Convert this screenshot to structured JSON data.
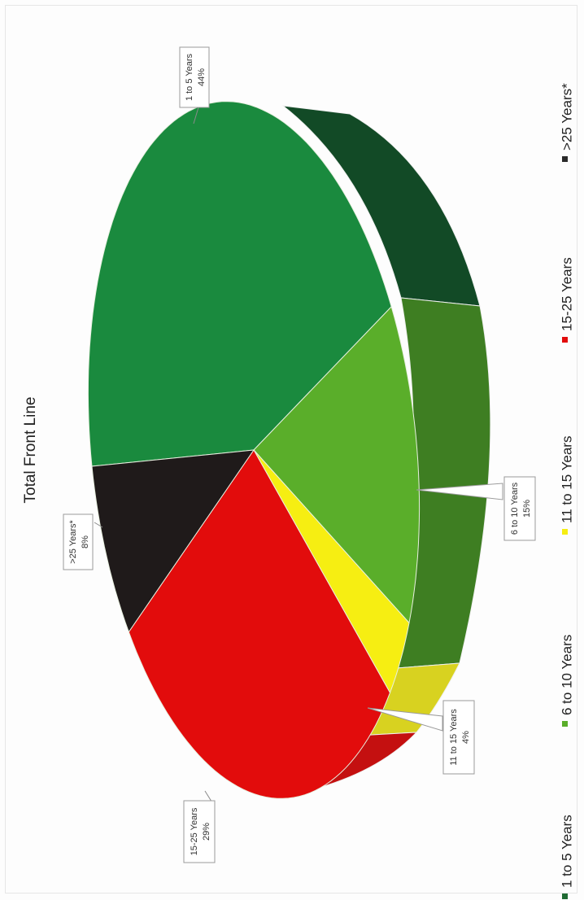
{
  "chart_data": {
    "type": "pie",
    "title": "Total Front Line",
    "slices": [
      {
        "name": "1 to 5 Years",
        "label": "1 to 5 Years",
        "value": 44,
        "value_label": "44%",
        "color": "#1a8a3e",
        "side_color": "#124a26"
      },
      {
        "name": "6 to 10 Years",
        "label": "6 to 10 Years",
        "value": 15,
        "value_label": "15%",
        "color": "#5aae2a",
        "side_color": "#3e7e22"
      },
      {
        "name": "11 to 15 Years",
        "label": "11 to 15 Years",
        "value": 4,
        "value_label": "4%",
        "color": "#f6ee12",
        "side_color": "#d8d220"
      },
      {
        "name": "15-25 Years",
        "label": "15-25 Years",
        "value": 29,
        "value_label": "29%",
        "color": "#e20c0c",
        "side_color": "#c41010"
      },
      {
        "name": ">25 Years*",
        "label": ">25 Years*",
        "value": 8,
        "value_label": "8%",
        "color": "#1f1a1a",
        "side_color": "#151212"
      }
    ],
    "legend": {
      "placement": "bottom",
      "entries": [
        {
          "label": "1 to 5 Years",
          "color": "#1f6b33"
        },
        {
          "label": "6 to 10 Years",
          "color": "#5aae2a"
        },
        {
          "label": "11 to 15 Years",
          "color": "#f6ee12"
        },
        {
          "label": "15-25 Years",
          "color": "#e20c0c"
        },
        {
          "label": ">25 Years*",
          "color": "#2a2a2a"
        }
      ]
    }
  }
}
